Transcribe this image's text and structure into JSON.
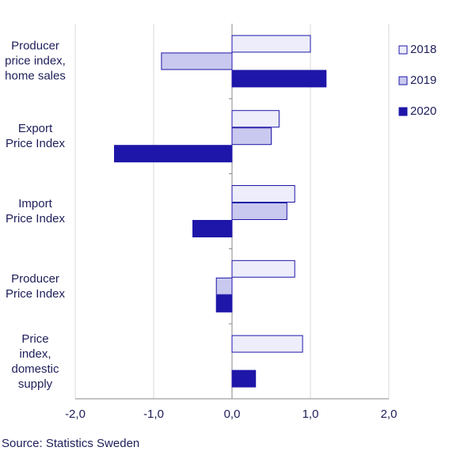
{
  "chart_data": {
    "type": "hbar",
    "categories": [
      "Producer price index, home sales",
      "Export Price Index",
      "Import Price Index",
      "Producer Price Index",
      "Price index, domestic supply"
    ],
    "series": [
      {
        "name": "2018",
        "color": "#ededfb",
        "values": [
          1.0,
          0.6,
          0.8,
          0.8,
          0.9
        ]
      },
      {
        "name": "2019",
        "color": "#c9c9ef",
        "values": [
          -0.9,
          0.5,
          0.7,
          -0.2,
          0
        ]
      },
      {
        "name": "2020",
        "color": "#1e16a8",
        "values": [
          1.2,
          -1.5,
          -0.5,
          -0.2,
          0.3
        ]
      }
    ],
    "xlim": [
      -2,
      2
    ],
    "xticks": [
      {
        "value": -2,
        "label": "-2,0"
      },
      {
        "value": -1,
        "label": "-1,0"
      },
      {
        "value": 0,
        "label": "0,0"
      },
      {
        "value": 1,
        "label": "1,0"
      },
      {
        "value": 2,
        "label": "2,0"
      }
    ],
    "grid": true,
    "legend": "right",
    "source": "Source: Statistics Sweden"
  }
}
